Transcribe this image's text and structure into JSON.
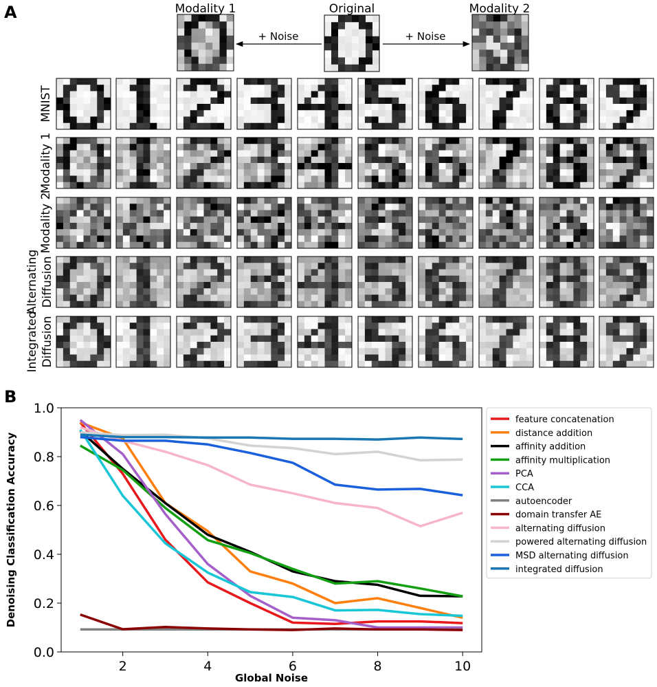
{
  "panel_a": {
    "letter": "A",
    "top": {
      "modality1_label": "Modality 1",
      "original_label": "Original",
      "modality2_label": "Modality 2",
      "arrow_left_label": "+ Noise",
      "arrow_right_label": "+ Noise"
    },
    "row_labels": [
      [
        "MNIST"
      ],
      [
        "Modality 1"
      ],
      [
        "Modality 2"
      ],
      [
        "Alternating",
        "Diffusion"
      ],
      [
        "Integrated",
        "Diffusion"
      ]
    ],
    "digits": [
      "0",
      "1",
      "2",
      "3",
      "4",
      "5",
      "6",
      "7",
      "8",
      "9"
    ]
  },
  "panel_b": {
    "letter": "B"
  },
  "chart_data": {
    "type": "line",
    "xlabel": "Global Noise",
    "ylabel": "Denoising Classification Accuracy",
    "xlim": [
      0.55,
      10.45
    ],
    "ylim": [
      0,
      1.0
    ],
    "xticks": [
      2,
      4,
      6,
      8,
      10
    ],
    "yticks": [
      0.0,
      0.2,
      0.4,
      0.6,
      0.8,
      1.0
    ],
    "grid": false,
    "legend_position": "right-outside",
    "x": [
      1,
      2,
      3,
      4,
      5,
      6,
      7,
      8,
      9,
      10
    ],
    "series": [
      {
        "name": "feature concatenation",
        "color": "#e8191c",
        "values": [
          0.94,
          0.73,
          0.46,
          0.285,
          0.2,
          0.12,
          0.115,
          0.125,
          0.125,
          0.118
        ]
      },
      {
        "name": "distance addition",
        "color": "#ff7f0e",
        "values": [
          0.94,
          0.875,
          0.61,
          0.495,
          0.33,
          0.28,
          0.2,
          0.22,
          0.18,
          0.14
        ]
      },
      {
        "name": "affinity addition",
        "color": "#000000",
        "values": [
          0.905,
          0.75,
          0.61,
          0.48,
          0.41,
          0.33,
          0.29,
          0.275,
          0.23,
          0.228
        ]
      },
      {
        "name": "affinity multiplication",
        "color": "#12a012",
        "values": [
          0.845,
          0.745,
          0.59,
          0.458,
          0.405,
          0.34,
          0.28,
          0.29,
          0.26,
          0.228
        ]
      },
      {
        "name": "PCA",
        "color": "#a45fc8",
        "values": [
          0.95,
          0.81,
          0.565,
          0.36,
          0.23,
          0.14,
          0.13,
          0.1,
          0.1,
          0.1
        ]
      },
      {
        "name": "CCA",
        "color": "#18c6d6",
        "values": [
          0.91,
          0.64,
          0.445,
          0.325,
          0.245,
          0.225,
          0.17,
          0.172,
          0.155,
          0.148
        ]
      },
      {
        "name": "autoencoder",
        "color": "#808080",
        "values": [
          0.092,
          0.092,
          0.092,
          0.092,
          0.092,
          0.092,
          0.092,
          0.092,
          0.092,
          0.092
        ]
      },
      {
        "name": "domain transfer AE",
        "color": "#8b0000",
        "values": [
          0.153,
          0.093,
          0.102,
          0.096,
          0.092,
          0.09,
          0.096,
          0.092,
          0.092,
          0.09
        ]
      },
      {
        "name": "alternating diffusion",
        "color": "#f7b6c8",
        "values": [
          0.92,
          0.865,
          0.82,
          0.765,
          0.685,
          0.65,
          0.61,
          0.59,
          0.515,
          0.57
        ]
      },
      {
        "name": "powered alternating diffusion",
        "color": "#d3d3d3",
        "values": [
          0.9,
          0.888,
          0.89,
          0.875,
          0.845,
          0.835,
          0.81,
          0.82,
          0.785,
          0.788
        ]
      },
      {
        "name": "MSD alternating diffusion",
        "color": "#1a5fdc",
        "values": [
          0.88,
          0.865,
          0.865,
          0.85,
          0.815,
          0.775,
          0.685,
          0.665,
          0.668,
          0.642
        ]
      },
      {
        "name": "integrated diffusion",
        "color": "#1977b4",
        "values": [
          0.89,
          0.88,
          0.88,
          0.878,
          0.878,
          0.873,
          0.873,
          0.87,
          0.878,
          0.872
        ]
      }
    ]
  }
}
